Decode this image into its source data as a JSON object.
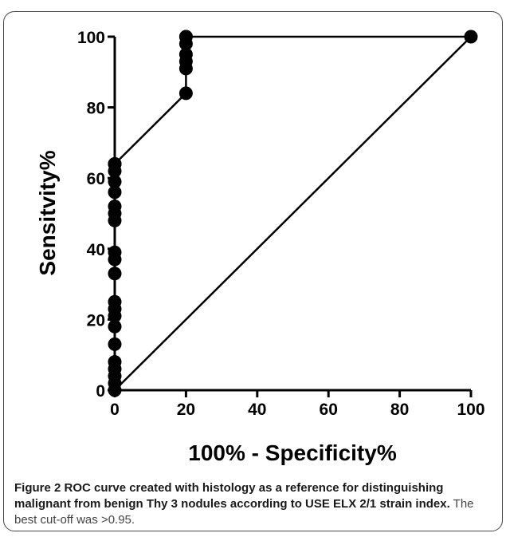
{
  "figure": {
    "caption_bold": "Figure 2 ROC curve created with histology as a reference for distinguishing malignant from benign Thy 3 nodules according to USE ELX 2/1 strain index.",
    "caption_plain": "The best cut-off was >0.95."
  },
  "chart_data": {
    "type": "line",
    "title": "",
    "xlabel": "100% - Specificity%",
    "ylabel": "Sensitvity%",
    "xlim": [
      0,
      100
    ],
    "ylim": [
      0,
      100
    ],
    "xticks": [
      0,
      20,
      40,
      60,
      80,
      100
    ],
    "yticks": [
      0,
      20,
      40,
      60,
      80,
      100
    ],
    "grid": false,
    "series": [
      {
        "kind": "roc-curve",
        "color": "#000000",
        "x": [
          0,
          0,
          0,
          0,
          0,
          0,
          0,
          0,
          0,
          0,
          0,
          0,
          0,
          0,
          0,
          0,
          0,
          0,
          0,
          0,
          0,
          0,
          20,
          20,
          20,
          20,
          20,
          20,
          20,
          100
        ],
        "y": [
          0,
          2,
          4,
          6,
          8,
          13,
          18,
          21,
          23,
          25,
          33,
          37,
          39,
          48,
          50,
          52,
          56,
          59,
          62,
          64,
          64,
          64,
          84,
          91,
          93,
          95,
          98,
          100,
          100,
          100
        ]
      },
      {
        "kind": "reference-line",
        "color": "#000000",
        "x": [
          0,
          100
        ],
        "y": [
          0,
          100
        ]
      }
    ]
  }
}
